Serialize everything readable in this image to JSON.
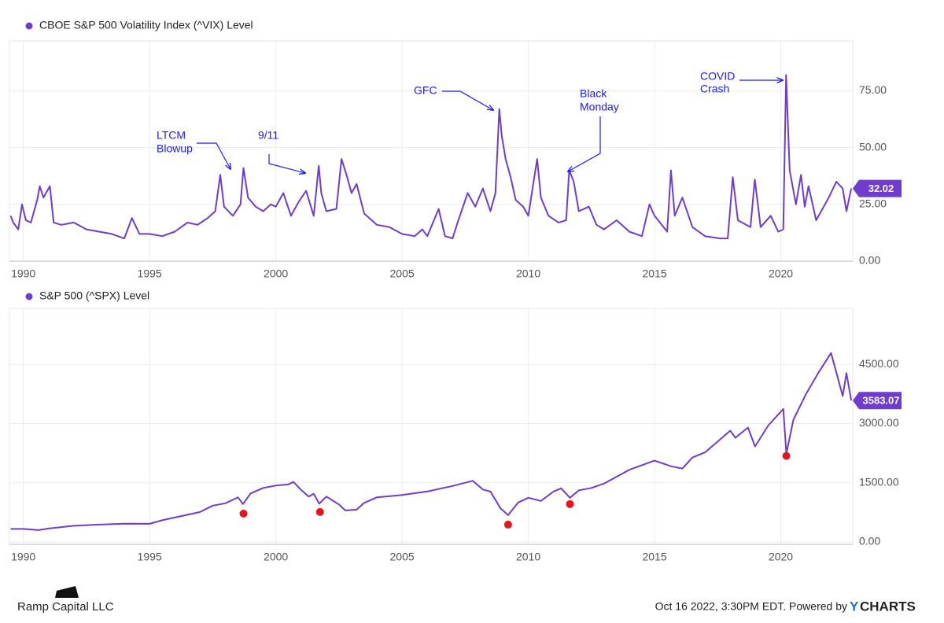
{
  "chart_data": [
    {
      "type": "line",
      "legend": "CBOE S&P 500 Volatility Index (^VIX) Level",
      "x": [
        1989.5,
        1989.6,
        1989.8,
        1989.95,
        1990.1,
        1990.3,
        1990.55,
        1990.65,
        1990.8,
        1990.9,
        1991.05,
        1991.2,
        1991.5,
        1992,
        1992.5,
        1993,
        1993.5,
        1994,
        1994.3,
        1994.6,
        1995,
        1995.5,
        1996,
        1996.5,
        1996.9,
        1997.3,
        1997.6,
        1997.8,
        1997.95,
        1998.3,
        1998.6,
        1998.72,
        1998.9,
        1999.2,
        1999.5,
        1999.8,
        2000.0,
        2000.3,
        2000.6,
        2000.9,
        2001.2,
        2001.5,
        2001.7,
        2001.8,
        2002.0,
        2002.4,
        2002.6,
        2002.8,
        2003.0,
        2003.2,
        2003.5,
        2004,
        2004.5,
        2005,
        2005.5,
        2005.8,
        2006,
        2006.45,
        2006.7,
        2007,
        2007.2,
        2007.6,
        2007.9,
        2008.2,
        2008.5,
        2008.7,
        2008.85,
        2008.95,
        2009.1,
        2009.3,
        2009.5,
        2009.8,
        2010.0,
        2010.35,
        2010.5,
        2010.8,
        2011.2,
        2011.5,
        2011.62,
        2011.8,
        2012.0,
        2012.4,
        2012.7,
        2013,
        2013.5,
        2014,
        2014.5,
        2014.8,
        2015,
        2015.5,
        2015.65,
        2015.8,
        2016.1,
        2016.5,
        2017,
        2017.6,
        2017.9,
        2018.1,
        2018.3,
        2018.8,
        2018.97,
        2019.2,
        2019.6,
        2019.9,
        2020.1,
        2020.21,
        2020.35,
        2020.6,
        2020.8,
        2020.95,
        2021.1,
        2021.4,
        2021.9,
        2022.2,
        2022.45,
        2022.6,
        2022.79
      ],
      "series": [
        {
          "name": "CBOE S&P 500 Volatility Index (^VIX) Level",
          "color": "#6f3ccf",
          "values": [
            20,
            17,
            14,
            25,
            18,
            17,
            27,
            33,
            28,
            30,
            33,
            17,
            16,
            17,
            14,
            13,
            12,
            10,
            19,
            12,
            12,
            11,
            13,
            17,
            16,
            19,
            22,
            38,
            24,
            20,
            25,
            41,
            28,
            24,
            22,
            25,
            24,
            30,
            20,
            26,
            31,
            20,
            42,
            30,
            22,
            23,
            45,
            38,
            30,
            34,
            21,
            16,
            15,
            12,
            11,
            14,
            11,
            23,
            11,
            10,
            17,
            30,
            24,
            32,
            22,
            30,
            67,
            55,
            45,
            37,
            27,
            24,
            20,
            45,
            28,
            20,
            17,
            18,
            40,
            35,
            22,
            24,
            16,
            14,
            18,
            13,
            11,
            25,
            20,
            13,
            40,
            20,
            28,
            15,
            11,
            10,
            10,
            37,
            18,
            15,
            36,
            15,
            20,
            13,
            14,
            82,
            40,
            25,
            38,
            24,
            33,
            18,
            28,
            35,
            32,
            22,
            32.02
          ]
        }
      ],
      "xlim": [
        1989.45,
        2022.85
      ],
      "xticks": [
        1990,
        1995,
        2000,
        2005,
        2010,
        2015,
        2020
      ],
      "ylim": [
        0,
        97
      ],
      "yticks": [
        {
          "value": 0,
          "label": "0.00"
        },
        {
          "value": 25,
          "label": "25.00"
        },
        {
          "value": 50,
          "label": "50.00"
        },
        {
          "value": 75,
          "label": "75.00"
        }
      ],
      "grid": true,
      "annotations": [
        {
          "text": [
            "LTCM",
            "Blowup"
          ]
        },
        {
          "text": [
            "9/11"
          ]
        },
        {
          "text": [
            "GFC"
          ]
        },
        {
          "text": [
            "Black",
            "Monday"
          ]
        },
        {
          "text": [
            "COVID",
            "Crash"
          ]
        }
      ],
      "annotation_color": "#1a1aff"
    },
    {
      "type": "line",
      "legend": "S&P 500 (^SPX) Level",
      "x": [
        1989.5,
        1990,
        1990.6,
        1991,
        1992,
        1993,
        1994,
        1995,
        1995.5,
        1996,
        1997,
        1997.5,
        1998,
        1998.5,
        1998.7,
        1999,
        1999.5,
        2000,
        2000.5,
        2000.7,
        2001,
        2001.3,
        2001.5,
        2001.72,
        2002,
        2002.5,
        2002.75,
        2003.2,
        2003.5,
        2004,
        2005,
        2006,
        2007,
        2007.8,
        2008.2,
        2008.5,
        2008.9,
        2009.2,
        2009.6,
        2010,
        2010.5,
        2011,
        2011.3,
        2011.65,
        2012,
        2012.5,
        2013,
        2014,
        2015,
        2015.65,
        2016.1,
        2016.5,
        2017,
        2018,
        2018.2,
        2018.7,
        2018.98,
        2019.5,
        2020.1,
        2020.22,
        2020.5,
        2021,
        2021.5,
        2021.99,
        2022.2,
        2022.45,
        2022.6,
        2022.79
      ],
      "series": [
        {
          "name": "S&P 500 (^SPX) Level",
          "color": "#6f3ccf",
          "values": [
            330,
            330,
            300,
            340,
            410,
            440,
            465,
            460,
            550,
            620,
            760,
            920,
            980,
            1130,
            960,
            1230,
            1370,
            1430,
            1460,
            1520,
            1320,
            1150,
            1220,
            970,
            1150,
            950,
            800,
            820,
            990,
            1130,
            1190,
            1280,
            1420,
            1550,
            1330,
            1280,
            850,
            680,
            1000,
            1120,
            1040,
            1280,
            1360,
            1120,
            1310,
            1370,
            1480,
            1830,
            2060,
            1920,
            1860,
            2140,
            2270,
            2820,
            2640,
            2900,
            2420,
            2950,
            3370,
            2240,
            3100,
            3750,
            4300,
            4790,
            4300,
            3700,
            4280,
            3583.07
          ]
        }
      ],
      "points": {
        "color": "#e8141c",
        "x": [
          1998.72,
          2001.75,
          2009.2,
          2011.65,
          2020.22
        ],
        "values": [
          720,
          760,
          440,
          960,
          2180
        ]
      },
      "xlim": [
        1989.45,
        2022.85
      ],
      "xticks": [
        1990,
        1995,
        2000,
        2005,
        2010,
        2015,
        2020
      ],
      "ylim": [
        -60,
        5920
      ],
      "yticks": [
        {
          "value": 0,
          "label": "0.00"
        },
        {
          "value": 1500,
          "label": "1500.00"
        },
        {
          "value": 3000,
          "label": "3000.00"
        },
        {
          "value": 4500,
          "label": "4500.00"
        }
      ],
      "grid": true
    }
  ],
  "footer": {
    "left": "Ramp Capital LLC",
    "right": "Oct 16 2022, 3:30PM EDT. Powered by",
    "brand_y": "Y",
    "brand_rest": "CHARTS"
  }
}
